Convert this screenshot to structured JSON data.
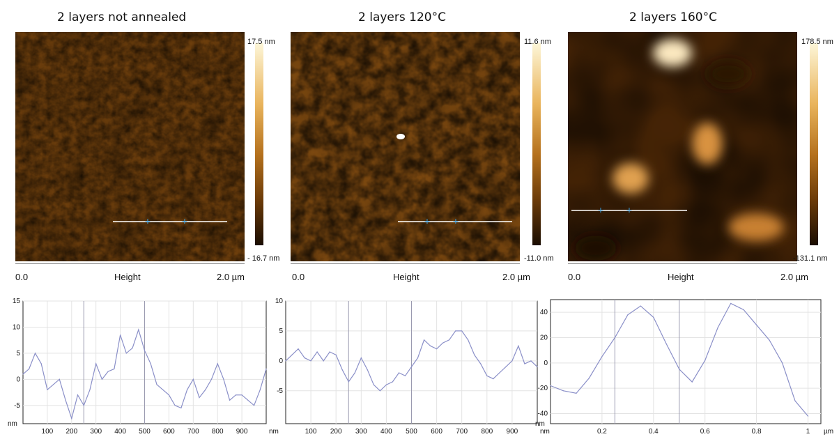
{
  "panels": [
    {
      "title": "2 layers not annealed",
      "scale_max": "17.5 nm",
      "scale_min": "- 16.7 nm",
      "axis_start": "0.0",
      "axis_label": "Height",
      "axis_end": "2.0 µm"
    },
    {
      "title": "2 layers 120°C",
      "scale_max": "11.6 nm",
      "scale_min": "-11.0 nm",
      "axis_start": "0.0",
      "axis_label": "Height",
      "axis_end": "2.0 µm"
    },
    {
      "title": "2 layers 160°C",
      "scale_max": "178.5 nm",
      "scale_min": "-131.1 nm",
      "axis_start": "0.0",
      "axis_label": "Height",
      "axis_end": "2.0 µm"
    }
  ],
  "chart_data": [
    {
      "type": "line",
      "ylabel": "nm",
      "xunit": "nm",
      "xlim": [
        0,
        1000
      ],
      "ylim": [
        -8.5,
        15
      ],
      "yticks": [
        15,
        10,
        5,
        0,
        -5
      ],
      "xticks": [
        100,
        200,
        300,
        400,
        500,
        600,
        700,
        800,
        900
      ],
      "markers": [
        250,
        500
      ],
      "x": [
        0,
        25,
        50,
        75,
        100,
        125,
        150,
        175,
        200,
        225,
        250,
        275,
        300,
        325,
        350,
        375,
        400,
        425,
        450,
        475,
        500,
        525,
        550,
        575,
        600,
        625,
        650,
        675,
        700,
        725,
        750,
        775,
        800,
        825,
        850,
        875,
        900,
        925,
        950,
        975,
        1000
      ],
      "y": [
        1,
        2,
        5,
        3,
        -2,
        -1,
        0,
        -4,
        -7.5,
        -3,
        -5,
        -2,
        3,
        0,
        1.5,
        2,
        8.5,
        5,
        6,
        9.5,
        5.5,
        3,
        -1,
        -2,
        -3,
        -5,
        -5.5,
        -2,
        0,
        -3.5,
        -2,
        0,
        3,
        0,
        -4,
        -3,
        -3,
        -4,
        -5,
        -2,
        2
      ]
    },
    {
      "type": "line",
      "xunit": "nm",
      "xlim": [
        0,
        1000
      ],
      "ylim": [
        -10.5,
        10
      ],
      "yticks": [
        10,
        5,
        0,
        -5
      ],
      "xticks": [
        100,
        200,
        300,
        400,
        500,
        600,
        700,
        800,
        900
      ],
      "markers": [
        250,
        500
      ],
      "x": [
        0,
        25,
        50,
        75,
        100,
        125,
        150,
        175,
        200,
        225,
        250,
        275,
        300,
        325,
        350,
        375,
        400,
        425,
        450,
        475,
        500,
        525,
        550,
        575,
        600,
        625,
        650,
        675,
        700,
        725,
        750,
        775,
        800,
        825,
        850,
        875,
        900,
        925,
        950,
        975,
        1000
      ],
      "y": [
        0,
        1,
        2,
        0.5,
        0,
        1.5,
        0,
        1.5,
        1,
        -1.5,
        -3.5,
        -2,
        0.5,
        -1.5,
        -4,
        -5,
        -4,
        -3.5,
        -2,
        -2.5,
        -1,
        0.5,
        3.5,
        2.5,
        2,
        3,
        3.5,
        5,
        5,
        3.5,
        1,
        -0.5,
        -2.5,
        -3,
        -2,
        -1,
        0,
        2.5,
        -0.5,
        0,
        -1
      ]
    },
    {
      "type": "line",
      "ylabel": "nm",
      "xunit": "µm",
      "xlim": [
        0,
        1.05
      ],
      "ylim": [
        -48,
        50
      ],
      "yticks": [
        40,
        20,
        0,
        -20,
        -40
      ],
      "xticks": [
        0.2,
        0.4,
        0.6,
        0.8,
        1
      ],
      "markers": [
        0.25,
        0.5
      ],
      "x": [
        0,
        0.05,
        0.1,
        0.15,
        0.2,
        0.25,
        0.3,
        0.35,
        0.4,
        0.45,
        0.5,
        0.55,
        0.6,
        0.65,
        0.7,
        0.75,
        0.8,
        0.85,
        0.9,
        0.95,
        1.0
      ],
      "y": [
        -18,
        -22,
        -24,
        -12,
        5,
        20,
        38,
        45,
        36,
        15,
        -5,
        -15,
        2,
        28,
        47,
        42,
        30,
        18,
        0,
        -30,
        -42
      ]
    }
  ]
}
